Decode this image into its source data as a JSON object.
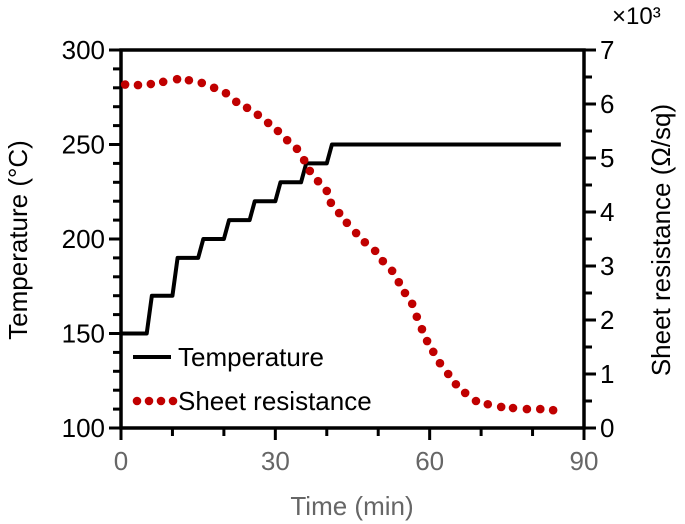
{
  "chart_data": {
    "type": "line",
    "xlabel": "Time (min)",
    "ylabel_left": "Temperature (°C)",
    "ylabel_right": "Sheet resistance (Ω/sq)",
    "right_multiplier": "×10³",
    "xlim": [
      0,
      90
    ],
    "ylim_left": [
      100,
      300
    ],
    "ylim_right": [
      0,
      7
    ],
    "x_ticks": [
      "0",
      "30",
      "60",
      "90"
    ],
    "y_left_ticks": [
      "100",
      "150",
      "200",
      "250",
      "300"
    ],
    "y_right_ticks": [
      "0",
      "1",
      "2",
      "3",
      "4",
      "5",
      "6",
      "7"
    ],
    "grid": false,
    "legend_placement": "bottom-left",
    "colors": {
      "temperature": "#000000",
      "resistance": "#c00000",
      "x_tick_labels": "#666666"
    },
    "series": [
      {
        "name": "Temperature",
        "axis": "left",
        "style": "solid",
        "points": [
          [
            0,
            150
          ],
          [
            5,
            150
          ],
          [
            6,
            170
          ],
          [
            10,
            170
          ],
          [
            11,
            190
          ],
          [
            15,
            190
          ],
          [
            16,
            200
          ],
          [
            20,
            200
          ],
          [
            21,
            210
          ],
          [
            25,
            210
          ],
          [
            26,
            220
          ],
          [
            30,
            220
          ],
          [
            31,
            230
          ],
          [
            35,
            230
          ],
          [
            36,
            240
          ],
          [
            40,
            240
          ],
          [
            41,
            250
          ],
          [
            85.5,
            250
          ]
        ]
      },
      {
        "name": "Sheet resistance",
        "axis": "right",
        "style": "dotted",
        "points": [
          [
            0.8,
            6.36
          ],
          [
            3.3,
            6.35
          ],
          [
            5.8,
            6.37
          ],
          [
            8.2,
            6.41
          ],
          [
            10.9,
            6.46
          ],
          [
            13.2,
            6.44
          ],
          [
            15.7,
            6.39
          ],
          [
            18.1,
            6.3
          ],
          [
            20.4,
            6.2
          ],
          [
            22.4,
            6.04
          ],
          [
            24.5,
            5.93
          ],
          [
            26.6,
            5.8
          ],
          [
            28.6,
            5.65
          ],
          [
            30.5,
            5.5
          ],
          [
            32.3,
            5.33
          ],
          [
            34.2,
            5.17
          ],
          [
            35.6,
            4.96
          ],
          [
            36.7,
            4.76
          ],
          [
            38.3,
            4.57
          ],
          [
            40.0,
            4.39
          ],
          [
            40.8,
            4.17
          ],
          [
            42.4,
            3.98
          ],
          [
            43.9,
            3.8
          ],
          [
            45.7,
            3.61
          ],
          [
            47.4,
            3.44
          ],
          [
            49.4,
            3.28
          ],
          [
            50.9,
            3.09
          ],
          [
            52.7,
            2.91
          ],
          [
            54.0,
            2.7
          ],
          [
            55.2,
            2.5
          ],
          [
            56.6,
            2.3
          ],
          [
            57.5,
            2.06
          ],
          [
            58.5,
            1.83
          ],
          [
            59.5,
            1.61
          ],
          [
            60.7,
            1.41
          ],
          [
            62.0,
            1.2
          ],
          [
            63.6,
            1.0
          ],
          [
            65.1,
            0.81
          ],
          [
            66.9,
            0.65
          ],
          [
            69.0,
            0.5
          ],
          [
            71.3,
            0.44
          ],
          [
            73.9,
            0.39
          ],
          [
            76.2,
            0.37
          ],
          [
            78.9,
            0.35
          ],
          [
            81.5,
            0.35
          ],
          [
            84.0,
            0.33
          ]
        ]
      }
    ]
  }
}
